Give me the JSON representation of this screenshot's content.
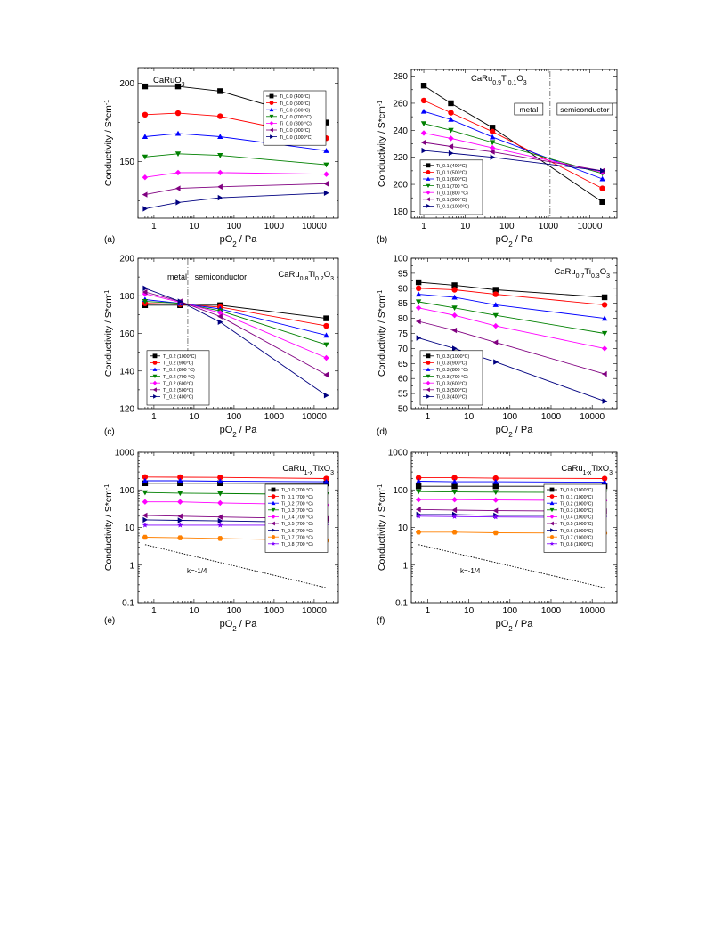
{
  "chart_data": [
    {
      "panel_label": "(a)",
      "type": "line",
      "title": "CaRuO3",
      "xlabel": "pO2 / Pa",
      "ylabel": "Conductivity / S*cm-1",
      "xscale": "log",
      "yscale": "linear",
      "xlim": [
        0.4,
        40000
      ],
      "ylim": [
        114,
        210
      ],
      "xticks": [
        1,
        10,
        100,
        1000,
        10000
      ],
      "xtick_labels": [
        "1",
        "10",
        "100",
        "1000",
        "10000"
      ],
      "yticks": [
        150,
        200
      ],
      "ytick_labels": [
        "150",
        "200"
      ],
      "legend_position": "right",
      "x": [
        0.6,
        4,
        45,
        20000
      ],
      "series": [
        {
          "name": "Ti_0.0 (400°C)",
          "values": [
            198,
            198,
            195,
            175
          ],
          "color": "#000000",
          "marker": "square"
        },
        {
          "name": "Ti_0.0 (500°C)",
          "values": [
            180,
            181,
            179,
            165
          ],
          "color": "#ff0000",
          "marker": "circle"
        },
        {
          "name": "Ti_0.0 (600°C)",
          "values": [
            166,
            168,
            166,
            157
          ],
          "color": "#0000ff",
          "marker": "triangle-up"
        },
        {
          "name": "Ti_0.0 (700 °C)",
          "values": [
            153,
            155,
            154,
            148
          ],
          "color": "#008000",
          "marker": "triangle-down"
        },
        {
          "name": "Ti_0.0 (800 °C)",
          "values": [
            140,
            143,
            143,
            142
          ],
          "color": "#ff00ff",
          "marker": "diamond"
        },
        {
          "name": "Ti_0.0 (900°C)",
          "values": [
            129,
            133,
            134,
            136
          ],
          "color": "#800080",
          "marker": "triangle-left"
        },
        {
          "name": "Ti_0.0 (1000°C)",
          "values": [
            120,
            124,
            127,
            130
          ],
          "color": "#000080",
          "marker": "triangle-right"
        }
      ]
    },
    {
      "panel_label": "(b)",
      "type": "line",
      "title": "CaRu0.9Ti0.1O3",
      "annotations": [
        "metal",
        "semiconductor"
      ],
      "xlabel": "pO2 / Pa",
      "ylabel": "Conductivity / S*cm-1",
      "xscale": "log",
      "yscale": "linear",
      "xlim": [
        0.5,
        45000
      ],
      "ylim": [
        175,
        285
      ],
      "xticks": [
        1,
        10,
        100,
        1000,
        10000
      ],
      "xtick_labels": [
        "1",
        "10",
        "100",
        "1000",
        "10000"
      ],
      "yticks": [
        180,
        200,
        220,
        240,
        260,
        280
      ],
      "ytick_labels": [
        "180",
        "200",
        "220",
        "240",
        "260",
        "280"
      ],
      "divider_x": 1100,
      "legend_position": "bottom-left",
      "x": [
        1,
        4.5,
        45,
        20000
      ],
      "series": [
        {
          "name": "Ti_0.1 (400°C)",
          "values": [
            273,
            260,
            242,
            187
          ],
          "color": "#000000",
          "marker": "square"
        },
        {
          "name": "Ti_0.1 (500°C)",
          "values": [
            262,
            253,
            239,
            197
          ],
          "color": "#ff0000",
          "marker": "circle"
        },
        {
          "name": "Ti_0.1 (600°C)",
          "values": [
            254,
            248,
            235,
            204
          ],
          "color": "#0000ff",
          "marker": "triangle-up"
        },
        {
          "name": "Ti_0.1 (700 °C)",
          "values": [
            245,
            240,
            231,
            208
          ],
          "color": "#008000",
          "marker": "triangle-down"
        },
        {
          "name": "Ti_0.1 (800 °C)",
          "values": [
            238,
            234,
            227,
            209
          ],
          "color": "#ff00ff",
          "marker": "diamond"
        },
        {
          "name": "Ti_0.1 (900°C)",
          "values": [
            231,
            228,
            224,
            210
          ],
          "color": "#800080",
          "marker": "triangle-left"
        },
        {
          "name": "Ti_0.1 (1000°C)",
          "values": [
            225,
            223,
            220,
            210
          ],
          "color": "#000080",
          "marker": "triangle-right"
        }
      ]
    },
    {
      "panel_label": "(c)",
      "type": "line",
      "title": "CaRu0.8Ti0.2O3",
      "annotations": [
        "metal",
        "semiconductor"
      ],
      "xlabel": "pO2 / Pa",
      "ylabel": "Conductivity / S*cm-1",
      "xscale": "log",
      "yscale": "linear",
      "xlim": [
        0.4,
        40000
      ],
      "ylim": [
        120,
        200
      ],
      "xticks": [
        1,
        10,
        100,
        1000,
        10000
      ],
      "xtick_labels": [
        "1",
        "10",
        "100",
        "1000",
        "10000"
      ],
      "yticks": [
        120,
        140,
        160,
        180,
        200
      ],
      "ytick_labels": [
        "120",
        "140",
        "160",
        "180",
        "200"
      ],
      "divider_x": 7,
      "legend_position": "bottom-left",
      "x": [
        0.6,
        4.5,
        45,
        20000
      ],
      "series": [
        {
          "name": "Ti_0.2 (1000°C)",
          "values": [
            175,
            175,
            175,
            168
          ],
          "color": "#000000",
          "marker": "square"
        },
        {
          "name": "Ti_0.2 (900°C)",
          "values": [
            176,
            175.5,
            174,
            164
          ],
          "color": "#ff0000",
          "marker": "circle"
        },
        {
          "name": "Ti_0.2 (800 °C)",
          "values": [
            178,
            176,
            173,
            159
          ],
          "color": "#0000ff",
          "marker": "triangle-up"
        },
        {
          "name": "Ti_0.2 (700 °C)",
          "values": [
            177,
            176,
            172,
            154
          ],
          "color": "#008000",
          "marker": "triangle-down"
        },
        {
          "name": "Ti_0.2 (600°C)",
          "values": [
            181,
            176.5,
            171,
            147
          ],
          "color": "#ff00ff",
          "marker": "diamond"
        },
        {
          "name": "Ti_0.2 (500°C)",
          "values": [
            182,
            177,
            169,
            138
          ],
          "color": "#800080",
          "marker": "triangle-left"
        },
        {
          "name": "Ti_0.2 (400°C)",
          "values": [
            184,
            177,
            166,
            127
          ],
          "color": "#000080",
          "marker": "triangle-right"
        }
      ]
    },
    {
      "panel_label": "(d)",
      "type": "line",
      "title": "CaRu0.7Ti0.3O3",
      "xlabel": "pO2 / Pa",
      "ylabel": "Conductivity / S*cm-1",
      "xscale": "log",
      "yscale": "linear",
      "xlim": [
        0.4,
        40000
      ],
      "ylim": [
        50,
        100
      ],
      "xticks": [
        1,
        10,
        100,
        1000,
        10000
      ],
      "xtick_labels": [
        "1",
        "10",
        "100",
        "1000",
        "10000"
      ],
      "yticks": [
        50,
        55,
        60,
        65,
        70,
        75,
        80,
        85,
        90,
        95,
        100
      ],
      "ytick_labels": [
        "50",
        "55",
        "60",
        "65",
        "70",
        "75",
        "80",
        "85",
        "90",
        "95",
        "100"
      ],
      "legend_position": "bottom-left",
      "x": [
        0.6,
        4.5,
        45,
        20000
      ],
      "series": [
        {
          "name": "Ti_0.3 (1000°C)",
          "values": [
            92,
            91,
            89.5,
            87
          ],
          "color": "#000000",
          "marker": "square"
        },
        {
          "name": "Ti_0.3 (900°C)",
          "values": [
            90,
            89.5,
            88,
            84.5
          ],
          "color": "#ff0000",
          "marker": "circle"
        },
        {
          "name": "Ti_0.3 (800 °C)",
          "values": [
            88,
            87,
            84.5,
            80
          ],
          "color": "#0000ff",
          "marker": "triangle-up"
        },
        {
          "name": "Ti_0.3 (700 °C)",
          "values": [
            85.5,
            83.5,
            81,
            75
          ],
          "color": "#008000",
          "marker": "triangle-down"
        },
        {
          "name": "Ti_0.3 (600°C)",
          "values": [
            83.5,
            81,
            77.5,
            70
          ],
          "color": "#ff00ff",
          "marker": "diamond"
        },
        {
          "name": "Ti_0.3 (500°C)",
          "values": [
            79,
            76,
            72,
            61.5
          ],
          "color": "#800080",
          "marker": "triangle-left"
        },
        {
          "name": "Ti_0.3 (400°C)",
          "values": [
            73.5,
            70,
            65.5,
            52.5
          ],
          "color": "#000080",
          "marker": "triangle-right"
        }
      ]
    },
    {
      "panel_label": "(e)",
      "type": "line",
      "title": "CaRu1-xTixO3",
      "xlabel": "pO2 / Pa",
      "ylabel": "Conductivity / S*cm-1",
      "xscale": "log",
      "yscale": "log",
      "xlim": [
        0.4,
        40000
      ],
      "ylim": [
        0.1,
        1000
      ],
      "xticks": [
        1,
        10,
        100,
        1000,
        10000
      ],
      "xtick_labels": [
        "1",
        "10",
        "100",
        "1000",
        "10000"
      ],
      "yticks": [
        0.1,
        1,
        10,
        100,
        1000
      ],
      "ytick_labels": [
        "0.1",
        "1",
        "10",
        "100",
        "1000"
      ],
      "legend_position": "right",
      "slope_annotation": "k=-1/4",
      "slope_line": {
        "x": [
          0.6,
          20000
        ],
        "y": [
          3.5,
          0.25
        ]
      },
      "x": [
        0.6,
        4.5,
        45,
        20000
      ],
      "series": [
        {
          "name": "Ti_0.0 (700 °C)",
          "values": [
            150,
            150,
            150,
            148
          ],
          "color": "#000000",
          "marker": "square"
        },
        {
          "name": "Ti_0.1 (700 °C)",
          "values": [
            220,
            218,
            215,
            200
          ],
          "color": "#ff0000",
          "marker": "circle"
        },
        {
          "name": "Ti_0.2 (700 °C)",
          "values": [
            175,
            175,
            170,
            165
          ],
          "color": "#0000ff",
          "marker": "triangle-up"
        },
        {
          "name": "Ti_0.3 (700 °C)",
          "values": [
            85,
            82,
            80,
            75
          ],
          "color": "#008000",
          "marker": "triangle-down"
        },
        {
          "name": "Ti_0.4 (700 °C)",
          "values": [
            48,
            48,
            45,
            40
          ],
          "color": "#ff00ff",
          "marker": "diamond"
        },
        {
          "name": "Ti_0.5 (700 °C)",
          "values": [
            21,
            20,
            19,
            17
          ],
          "color": "#800080",
          "marker": "triangle-left"
        },
        {
          "name": "Ti_0.6 (700 °C)",
          "values": [
            16,
            15.5,
            15,
            13.5
          ],
          "color": "#000080",
          "marker": "triangle-right"
        },
        {
          "name": "Ti_0.7 (700 °C)",
          "values": [
            5.5,
            5.3,
            5.1,
            4.5
          ],
          "color": "#ff8000",
          "marker": "hexagon"
        },
        {
          "name": "Ti_0.8 (700 °C)",
          "values": [
            11.5,
            11.5,
            11.5,
            11.5
          ],
          "color": "#8000ff",
          "marker": "star"
        }
      ]
    },
    {
      "panel_label": "(f)",
      "type": "line",
      "title": "CaRu1-xTixO3",
      "xlabel": "pO2 / Pa",
      "ylabel": "Conductivity / S*cm-1",
      "xscale": "log",
      "yscale": "log",
      "xlim": [
        0.4,
        40000
      ],
      "ylim": [
        0.1,
        1000
      ],
      "xticks": [
        1,
        10,
        100,
        1000,
        10000
      ],
      "xtick_labels": [
        "1",
        "10",
        "100",
        "1000",
        "10000"
      ],
      "yticks": [
        0.1,
        1,
        10,
        100,
        1000
      ],
      "ytick_labels": [
        "0.1",
        "1",
        "10",
        "100",
        "1000"
      ],
      "legend_position": "right",
      "slope_annotation": "k=-1/4",
      "slope_line": {
        "x": [
          0.6,
          20000
        ],
        "y": [
          3.5,
          0.25
        ]
      },
      "x": [
        0.6,
        4.5,
        45,
        20000
      ],
      "series": [
        {
          "name": "Ti_0.0 (1000°C)",
          "values": [
            125,
            125,
            125,
            125
          ],
          "color": "#000000",
          "marker": "square"
        },
        {
          "name": "Ti_0.1 (1000°C)",
          "values": [
            210,
            210,
            205,
            200
          ],
          "color": "#ff0000",
          "marker": "circle"
        },
        {
          "name": "Ti_0.2 (1000°C)",
          "values": [
            170,
            165,
            165,
            160
          ],
          "color": "#0000ff",
          "marker": "triangle-up"
        },
        {
          "name": "Ti_0.3 (1000°C)",
          "values": [
            90,
            88,
            87,
            85
          ],
          "color": "#008000",
          "marker": "triangle-down"
        },
        {
          "name": "Ti_0.4 (1000°C)",
          "values": [
            55,
            55,
            54,
            52
          ],
          "color": "#ff00ff",
          "marker": "diamond"
        },
        {
          "name": "Ti_0.5 (1000°C)",
          "values": [
            30,
            29,
            28,
            27
          ],
          "color": "#800080",
          "marker": "triangle-left"
        },
        {
          "name": "Ti_0.6 (1000°C)",
          "values": [
            22,
            22,
            21,
            21
          ],
          "color": "#000080",
          "marker": "triangle-right"
        },
        {
          "name": "Ti_0.7 (1000°C)",
          "values": [
            7.5,
            7.5,
            7.2,
            7
          ],
          "color": "#ff8000",
          "marker": "hexagon"
        },
        {
          "name": "Ti_0.8 (1000°C)",
          "values": [
            20,
            19.5,
            19,
            18.5
          ],
          "color": "#8000ff",
          "marker": "star"
        }
      ]
    }
  ]
}
